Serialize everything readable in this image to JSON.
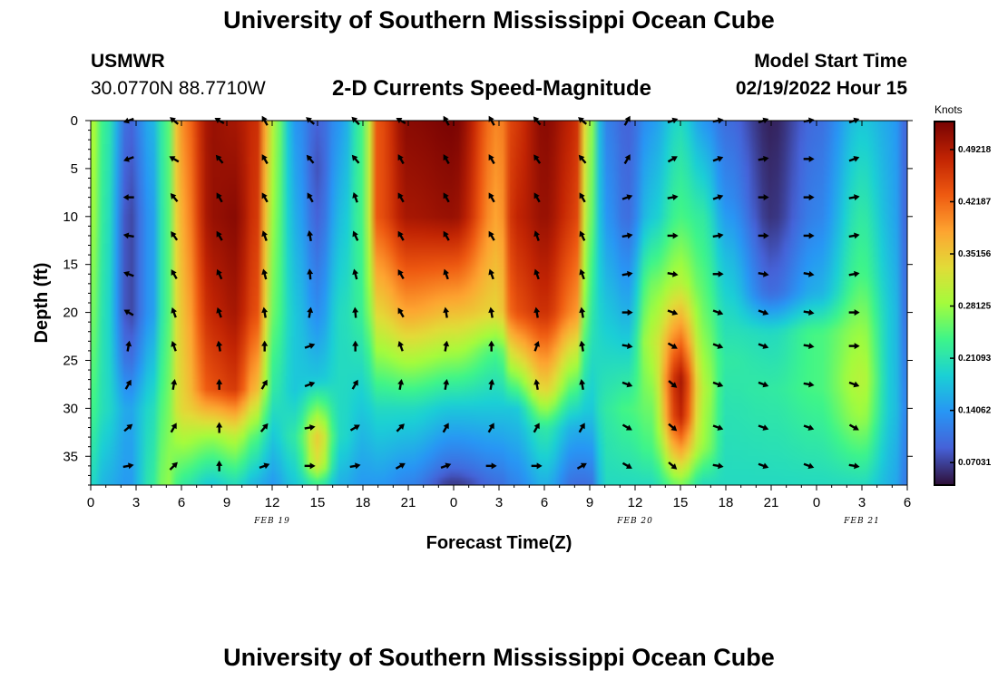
{
  "header": {
    "title": "University of Southern Mississippi Ocean Cube",
    "station": "USMWR",
    "coords": "30.0770N  88.7710W",
    "subtitle": "2-D Currents Speed-Magnitude",
    "model_start_label": "Model Start Time",
    "model_start_value": "02/19/2022 Hour 15"
  },
  "footer_title": "University of Southern Mississippi Ocean Cube",
  "colors": {
    "arrow": "#000000"
  },
  "chart_data": {
    "type": "heatmap",
    "title": "2-D Currents Speed-Magnitude",
    "xlabel": "Forecast Time(Z)",
    "ylabel": "Depth (ft)",
    "x_tick_labels": [
      "0",
      "3",
      "6",
      "9",
      "12",
      "15",
      "18",
      "21",
      "0",
      "3",
      "6",
      "9",
      "12",
      "15",
      "18",
      "21",
      "0",
      "3",
      "6"
    ],
    "xlim_hours": [
      0,
      54
    ],
    "y_ticks": [
      0,
      5,
      10,
      15,
      20,
      25,
      30,
      35
    ],
    "ylim": [
      0,
      38
    ],
    "date_labels": [
      {
        "text": "FEB 19",
        "hour": 12
      },
      {
        "text": "FEB 20",
        "hour": 36
      },
      {
        "text": "FEB 21",
        "hour": 51
      }
    ],
    "colorbar": {
      "label": "Knots",
      "ticks": [
        "0.49218",
        "0.42187",
        "0.35156",
        "0.28125",
        "0.21093",
        "0.14062",
        "0.07031"
      ],
      "tick_values": [
        0.49218,
        0.42187,
        0.35156,
        0.28125,
        0.21093,
        0.14062,
        0.07031
      ],
      "range": [
        0.04,
        0.53
      ]
    },
    "speed_profiles": [
      {
        "hour": 0,
        "depths": [
          0,
          10,
          20,
          30,
          38
        ],
        "speeds": [
          0.3,
          0.29,
          0.27,
          0.24,
          0.2
        ]
      },
      {
        "hour": 1,
        "depths": [
          0,
          10,
          20,
          30,
          38
        ],
        "speeds": [
          0.22,
          0.21,
          0.2,
          0.2,
          0.16
        ]
      },
      {
        "hour": 2.5,
        "depths": [
          0,
          10,
          20,
          25,
          30,
          38
        ],
        "speeds": [
          0.09,
          0.07,
          0.07,
          0.1,
          0.15,
          0.14
        ]
      },
      {
        "hour": 4,
        "depths": [
          0,
          10,
          20,
          30,
          38
        ],
        "speeds": [
          0.16,
          0.14,
          0.14,
          0.2,
          0.22
        ]
      },
      {
        "hour": 5,
        "depths": [
          0,
          10,
          20,
          30,
          38
        ],
        "speeds": [
          0.24,
          0.24,
          0.24,
          0.26,
          0.28
        ]
      },
      {
        "hour": 6,
        "depths": [
          0,
          10,
          20,
          30,
          38
        ],
        "speeds": [
          0.4,
          0.38,
          0.36,
          0.34,
          0.22
        ]
      },
      {
        "hour": 8,
        "depths": [
          0,
          10,
          20,
          28,
          33,
          38
        ],
        "speeds": [
          0.51,
          0.51,
          0.48,
          0.44,
          0.28,
          0.18
        ]
      },
      {
        "hour": 9.5,
        "depths": [
          0,
          10,
          20,
          28,
          33,
          38
        ],
        "speeds": [
          0.5,
          0.52,
          0.5,
          0.46,
          0.3,
          0.2
        ]
      },
      {
        "hour": 11,
        "depths": [
          0,
          10,
          20,
          28,
          33,
          38
        ],
        "speeds": [
          0.47,
          0.46,
          0.44,
          0.36,
          0.24,
          0.16
        ]
      },
      {
        "hour": 12,
        "depths": [
          0,
          10,
          20,
          28,
          33,
          38
        ],
        "speeds": [
          0.3,
          0.28,
          0.26,
          0.22,
          0.18,
          0.14
        ]
      },
      {
        "hour": 13.5,
        "depths": [
          0,
          10,
          20,
          28,
          33,
          38
        ],
        "speeds": [
          0.14,
          0.16,
          0.18,
          0.18,
          0.22,
          0.18
        ]
      },
      {
        "hour": 15,
        "depths": [
          0,
          5,
          10,
          20,
          27,
          33,
          36,
          38
        ],
        "speeds": [
          0.09,
          0.08,
          0.09,
          0.13,
          0.18,
          0.35,
          0.32,
          0.22
        ]
      },
      {
        "hour": 16.5,
        "depths": [
          0,
          10,
          20,
          28,
          33,
          38
        ],
        "speeds": [
          0.14,
          0.17,
          0.2,
          0.2,
          0.2,
          0.16
        ]
      },
      {
        "hour": 18,
        "depths": [
          0,
          10,
          20,
          30,
          38
        ],
        "speeds": [
          0.24,
          0.24,
          0.23,
          0.18,
          0.14
        ]
      },
      {
        "hour": 19,
        "depths": [
          0,
          10,
          20,
          30,
          38
        ],
        "speeds": [
          0.44,
          0.44,
          0.34,
          0.2,
          0.14
        ]
      },
      {
        "hour": 21,
        "depths": [
          0,
          10,
          20,
          30,
          38
        ],
        "speeds": [
          0.52,
          0.5,
          0.38,
          0.2,
          0.12
        ]
      },
      {
        "hour": 24,
        "depths": [
          0,
          10,
          20,
          30,
          36,
          38
        ],
        "speeds": [
          0.53,
          0.51,
          0.36,
          0.18,
          0.1,
          0.06
        ]
      },
      {
        "hour": 27,
        "depths": [
          0,
          10,
          20,
          24,
          30,
          38
        ],
        "speeds": [
          0.4,
          0.38,
          0.34,
          0.24,
          0.18,
          0.1
        ]
      },
      {
        "hour": 28,
        "depths": [
          0,
          10,
          20,
          25,
          30,
          38
        ],
        "speeds": [
          0.46,
          0.48,
          0.44,
          0.32,
          0.18,
          0.12
        ]
      },
      {
        "hour": 30,
        "depths": [
          0,
          10,
          20,
          28,
          32,
          38
        ],
        "speeds": [
          0.52,
          0.51,
          0.47,
          0.34,
          0.22,
          0.16
        ]
      },
      {
        "hour": 32,
        "depths": [
          0,
          10,
          20,
          28,
          32,
          38
        ],
        "speeds": [
          0.48,
          0.46,
          0.4,
          0.24,
          0.16,
          0.1
        ]
      },
      {
        "hour": 33,
        "depths": [
          0,
          10,
          20,
          30,
          38
        ],
        "speeds": [
          0.28,
          0.26,
          0.22,
          0.18,
          0.1
        ]
      },
      {
        "hour": 34,
        "depths": [
          0,
          10,
          20,
          30,
          38
        ],
        "speeds": [
          0.12,
          0.14,
          0.18,
          0.22,
          0.2
        ]
      },
      {
        "hour": 35.5,
        "depths": [
          0,
          10,
          20,
          30,
          38
        ],
        "speeds": [
          0.09,
          0.1,
          0.16,
          0.24,
          0.2
        ]
      },
      {
        "hour": 37,
        "depths": [
          0,
          10,
          17,
          23,
          30,
          34,
          38
        ],
        "speeds": [
          0.14,
          0.18,
          0.26,
          0.3,
          0.26,
          0.24,
          0.2
        ]
      },
      {
        "hour": 39,
        "depths": [
          0,
          10,
          17,
          23,
          27,
          31,
          35,
          38
        ],
        "speeds": [
          0.2,
          0.24,
          0.3,
          0.42,
          0.5,
          0.48,
          0.36,
          0.26
        ]
      },
      {
        "hour": 40.5,
        "depths": [
          0,
          10,
          20,
          28,
          34,
          38
        ],
        "speeds": [
          0.14,
          0.22,
          0.26,
          0.3,
          0.28,
          0.2
        ]
      },
      {
        "hour": 42,
        "depths": [
          0,
          8,
          14,
          20,
          25,
          30,
          38
        ],
        "speeds": [
          0.1,
          0.13,
          0.17,
          0.2,
          0.22,
          0.21,
          0.2
        ]
      },
      {
        "hour": 45,
        "depths": [
          0,
          10,
          18,
          22,
          28,
          38
        ],
        "speeds": [
          0.05,
          0.06,
          0.1,
          0.2,
          0.22,
          0.2
        ]
      },
      {
        "hour": 48,
        "depths": [
          0,
          10,
          18,
          22,
          28,
          38
        ],
        "speeds": [
          0.1,
          0.12,
          0.16,
          0.24,
          0.24,
          0.2
        ]
      },
      {
        "hour": 51,
        "depths": [
          0,
          10,
          16,
          22,
          27,
          31,
          38
        ],
        "speeds": [
          0.18,
          0.22,
          0.24,
          0.28,
          0.3,
          0.28,
          0.2
        ]
      },
      {
        "hour": 53,
        "depths": [
          0,
          10,
          20,
          30,
          38
        ],
        "speeds": [
          0.15,
          0.16,
          0.18,
          0.18,
          0.16
        ]
      },
      {
        "hour": 54,
        "depths": [
          0,
          10,
          20,
          30,
          38
        ],
        "speeds": [
          0.09,
          0.09,
          0.1,
          0.12,
          0.11
        ]
      }
    ],
    "vectors": {
      "hours": [
        2.5,
        5.5,
        8.5,
        11.5,
        14.5,
        17.5,
        20.5,
        23.5,
        26.5,
        29.5,
        32.5,
        35.5,
        38.5,
        41.5,
        44.5,
        47.5,
        50.5
      ],
      "depths": [
        0,
        4,
        8,
        12,
        16,
        20,
        23.5,
        27.5,
        32,
        36
      ],
      "angles_deg": [
        [
          200,
          140,
          150,
          120,
          140,
          135,
          150,
          120,
          120,
          130,
          140,
          60,
          20,
          10,
          20,
          10,
          20
        ],
        [
          200,
          150,
          130,
          120,
          130,
          130,
          120,
          120,
          120,
          125,
          130,
          60,
          30,
          20,
          10,
          0,
          20
        ],
        [
          180,
          130,
          120,
          120,
          120,
          110,
          120,
          120,
          120,
          120,
          120,
          20,
          10,
          20,
          0,
          0,
          10
        ],
        [
          170,
          125,
          120,
          110,
          100,
          115,
          120,
          120,
          120,
          110,
          115,
          10,
          0,
          10,
          0,
          0,
          10
        ],
        [
          160,
          120,
          115,
          105,
          95,
          105,
          120,
          110,
          110,
          110,
          110,
          10,
          -10,
          0,
          -10,
          -10,
          10
        ],
        [
          150,
          110,
          110,
          100,
          80,
          95,
          120,
          100,
          100,
          100,
          100,
          0,
          -20,
          -20,
          -20,
          -10,
          0
        ],
        [
          80,
          110,
          100,
          90,
          20,
          90,
          110,
          80,
          90,
          70,
          100,
          -10,
          -30,
          -20,
          -20,
          -10,
          0
        ],
        [
          60,
          80,
          90,
          60,
          20,
          60,
          80,
          80,
          80,
          100,
          100,
          -20,
          -40,
          -20,
          -20,
          -10,
          -20
        ],
        [
          40,
          60,
          90,
          50,
          10,
          30,
          45,
          60,
          60,
          60,
          60,
          -30,
          -40,
          -20,
          -20,
          -20,
          -30
        ],
        [
          10,
          45,
          90,
          20,
          0,
          10,
          30,
          20,
          0,
          0,
          30,
          -30,
          -40,
          -10,
          -20,
          -20,
          -10
        ]
      ]
    }
  }
}
